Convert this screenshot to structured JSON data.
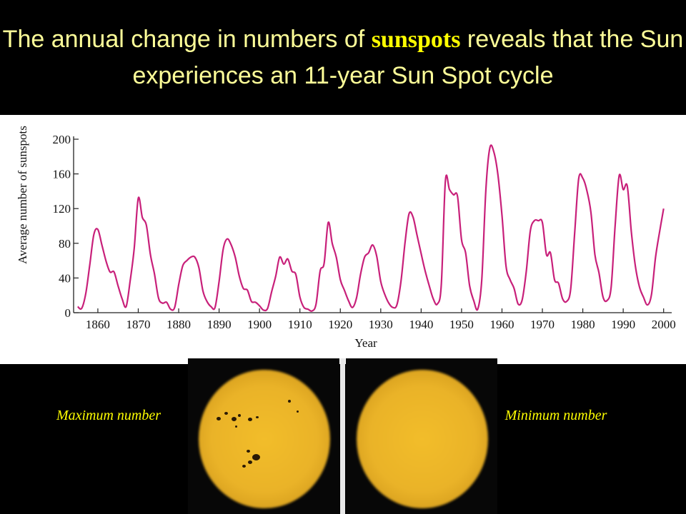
{
  "header": {
    "title_part1": "The annual change in numbers of ",
    "title_highlight": "sunspots",
    "title_part2": " reveals that the Sun experiences an 11-year Sun Spot cycle"
  },
  "colors": {
    "background": "#000000",
    "title_text": "#ffff99",
    "title_highlight": "#ffff00",
    "caption": "#ffff00",
    "series_line": "#c8207a"
  },
  "captions": {
    "maximum": "Maximum number",
    "minimum": "Minimum number"
  },
  "icons": {
    "photo_max": "sun-with-sunspots-photo",
    "photo_min": "sun-without-sunspots-photo"
  },
  "chart_data": {
    "type": "line",
    "xlabel": "Year",
    "ylabel": "Average number of sunspots",
    "xlim": [
      1854,
      2002
    ],
    "ylim": [
      0,
      200
    ],
    "xticks": [
      1860,
      1870,
      1880,
      1890,
      1900,
      1910,
      1920,
      1930,
      1940,
      1950,
      1960,
      1970,
      1980,
      1990,
      2000
    ],
    "yticks": [
      0,
      40,
      80,
      120,
      160,
      200
    ],
    "grid": false,
    "series": [
      {
        "x": [
          1855,
          1856,
          1857,
          1858,
          1859,
          1860,
          1861,
          1862,
          1863,
          1864,
          1865,
          1866,
          1867,
          1868,
          1869,
          1870,
          1871,
          1872,
          1873,
          1874,
          1875,
          1876,
          1877,
          1878,
          1879,
          1880,
          1881,
          1882,
          1883,
          1884,
          1885,
          1886,
          1887,
          1888,
          1889,
          1890,
          1891,
          1892,
          1893,
          1894,
          1895,
          1896,
          1897,
          1898,
          1899,
          1900,
          1901,
          1902,
          1903,
          1904,
          1905,
          1906,
          1907,
          1908,
          1909,
          1910,
          1911,
          1912,
          1913,
          1914,
          1915,
          1916,
          1917,
          1918,
          1919,
          1920,
          1921,
          1922,
          1923,
          1924,
          1925,
          1926,
          1927,
          1928,
          1929,
          1930,
          1931,
          1932,
          1933,
          1934,
          1935,
          1936,
          1937,
          1938,
          1939,
          1940,
          1941,
          1942,
          1943,
          1944,
          1945,
          1946,
          1947,
          1948,
          1949,
          1950,
          1951,
          1952,
          1953,
          1954,
          1955,
          1956,
          1957,
          1958,
          1959,
          1960,
          1961,
          1962,
          1963,
          1964,
          1965,
          1966,
          1967,
          1968,
          1969,
          1970,
          1971,
          1972,
          1973,
          1974,
          1975,
          1976,
          1977,
          1978,
          1979,
          1980,
          1981,
          1982,
          1983,
          1984,
          1985,
          1986,
          1987,
          1988,
          1989,
          1990,
          1991,
          1992,
          1993,
          1994,
          1995,
          1996,
          1997,
          1998,
          1999,
          2000
        ],
        "values": [
          7,
          5,
          22,
          55,
          90,
          96,
          78,
          60,
          47,
          47,
          31,
          16,
          7,
          37,
          74,
          132,
          110,
          101,
          67,
          45,
          17,
          11,
          12,
          4,
          6,
          32,
          54,
          60,
          64,
          64,
          52,
          25,
          13,
          7,
          6,
          36,
          73,
          85,
          78,
          64,
          42,
          28,
          26,
          13,
          12,
          8,
          3,
          5,
          24,
          42,
          64,
          56,
          62,
          48,
          44,
          18,
          6,
          4,
          2,
          10,
          48,
          57,
          104,
          80,
          64,
          38,
          26,
          14,
          6,
          17,
          44,
          64,
          69,
          78,
          65,
          36,
          21,
          11,
          6,
          9,
          36,
          80,
          114,
          110,
          89,
          68,
          48,
          31,
          16,
          10,
          33,
          152,
          142,
          136,
          134,
          84,
          69,
          31,
          14,
          4,
          38,
          141,
          190,
          185,
          159,
          112,
          54,
          38,
          28,
          10,
          15,
          47,
          94,
          106,
          106,
          104,
          67,
          69,
          38,
          34,
          16,
          13,
          27,
          93,
          155,
          155,
          141,
          116,
          67,
          46,
          18,
          14,
          29,
          100,
          158,
          142,
          146,
          94,
          54,
          30,
          18,
          9,
          21,
          64,
          93,
          120
        ]
      }
    ]
  }
}
